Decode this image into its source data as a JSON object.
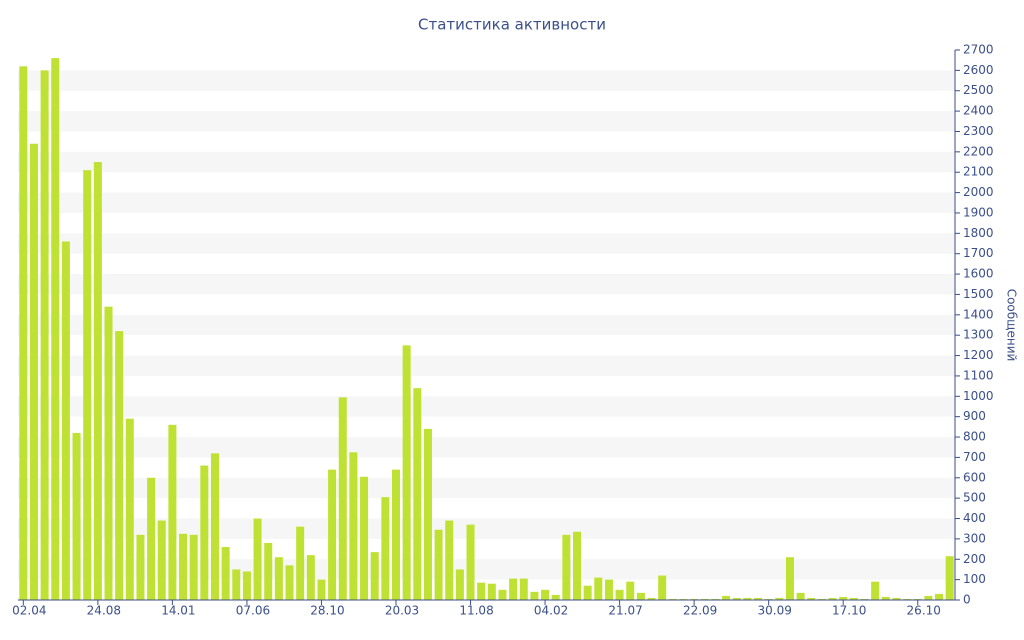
{
  "chart_data": {
    "type": "bar",
    "title": "Статистика активности",
    "y_axis_label": "Сообщений",
    "color": "#bfe133",
    "categories": [
      "02.04",
      null,
      null,
      null,
      null,
      null,
      null,
      "24.08",
      null,
      null,
      null,
      null,
      null,
      null,
      "14.01",
      null,
      null,
      null,
      null,
      null,
      null,
      "07.06",
      null,
      null,
      null,
      null,
      null,
      null,
      "28.10",
      null,
      null,
      null,
      null,
      null,
      null,
      "20.03",
      null,
      null,
      null,
      null,
      null,
      null,
      "11.08",
      null,
      null,
      null,
      null,
      null,
      null,
      "04.02",
      null,
      null,
      null,
      null,
      null,
      null,
      "21.07",
      null,
      null,
      null,
      null,
      null,
      null,
      "22.09",
      null,
      null,
      null,
      null,
      null,
      null,
      "30.09",
      null,
      null,
      null,
      null,
      null,
      null,
      "17.10",
      null,
      null,
      null,
      null,
      null,
      null,
      "26.10",
      null,
      null,
      null
    ],
    "values": [
      2620,
      2240,
      2600,
      2660,
      1760,
      820,
      2110,
      2150,
      1440,
      1320,
      890,
      320,
      600,
      390,
      860,
      325,
      320,
      660,
      720,
      260,
      150,
      140,
      400,
      280,
      210,
      170,
      360,
      220,
      100,
      640,
      995,
      725,
      605,
      235,
      505,
      640,
      1250,
      1040,
      840,
      345,
      390,
      150,
      370,
      85,
      80,
      50,
      105,
      105,
      40,
      50,
      25,
      320,
      335,
      70,
      110,
      100,
      50,
      90,
      35,
      10,
      120,
      5,
      5,
      5,
      5,
      5,
      20,
      10,
      10,
      10,
      5,
      10,
      210,
      35,
      10,
      5,
      10,
      15,
      10,
      5,
      90,
      15,
      10,
      5,
      5,
      20,
      30,
      215
    ],
    "ylim": [
      0,
      2700
    ],
    "yticks": [
      0,
      100,
      200,
      300,
      400,
      500,
      600,
      700,
      800,
      900,
      1000,
      1100,
      1200,
      1300,
      1400,
      1500,
      1600,
      1700,
      1800,
      1900,
      2000,
      2100,
      2200,
      2300,
      2400,
      2500,
      2600,
      2700
    ],
    "grid": true
  }
}
